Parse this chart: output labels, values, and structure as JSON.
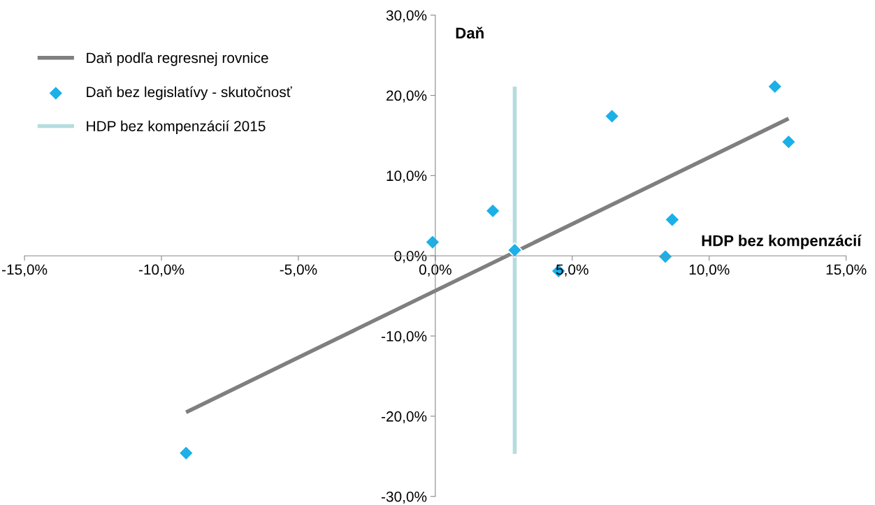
{
  "chart_data": {
    "type": "scatter",
    "xlabel": "HDP bez kompenzácií",
    "ylabel": "Daň",
    "xlim": [
      -15,
      15
    ],
    "ylim": [
      -30,
      30
    ],
    "xticks": [
      {
        "value": -15,
        "label": "-15,0%"
      },
      {
        "value": -10,
        "label": "-10,0%"
      },
      {
        "value": -5,
        "label": "-5,0%"
      },
      {
        "value": 0,
        "label": "0,0%"
      },
      {
        "value": 5,
        "label": "5,0%"
      },
      {
        "value": 10,
        "label": "10,0%"
      },
      {
        "value": 15,
        "label": "15,0%"
      }
    ],
    "yticks": [
      {
        "value": -30,
        "label": "-30,0%"
      },
      {
        "value": -20,
        "label": "-20,0%"
      },
      {
        "value": -10,
        "label": "-10,0%"
      },
      {
        "value": 0,
        "label": "0,0%"
      },
      {
        "value": 10,
        "label": "10,0%"
      },
      {
        "value": 20,
        "label": "20,0%"
      },
      {
        "value": 30,
        "label": "30,0%"
      }
    ],
    "grid": false,
    "legend": "top left",
    "series": [
      {
        "name": "Daň podľa regresnej rovnice",
        "type": "line",
        "color": "#7f7f7f",
        "x": [
          -9.1,
          12.9
        ],
        "values": [
          -19.5,
          17.1
        ],
        "marker": "none",
        "line_style": "solid"
      },
      {
        "name": "Daň bez legislatívy - skutočnosť",
        "color": "#1bb0e8",
        "marker": "diamond",
        "x": [
          -9.1,
          -0.1,
          2.1,
          2.9,
          4.5,
          6.45,
          8.4,
          8.65,
          12.4,
          12.9
        ],
        "values": [
          -24.6,
          1.7,
          5.6,
          0.7,
          -1.9,
          17.4,
          -0.1,
          4.5,
          21.1,
          14.2
        ]
      },
      {
        "name": "HDP bez kompenzácií 2015",
        "type": "line",
        "color": "#b4dde0",
        "x": [
          2.9,
          2.9
        ],
        "values": [
          -24.7,
          21.1
        ],
        "marker": "none",
        "line_style": "solid"
      }
    ]
  }
}
